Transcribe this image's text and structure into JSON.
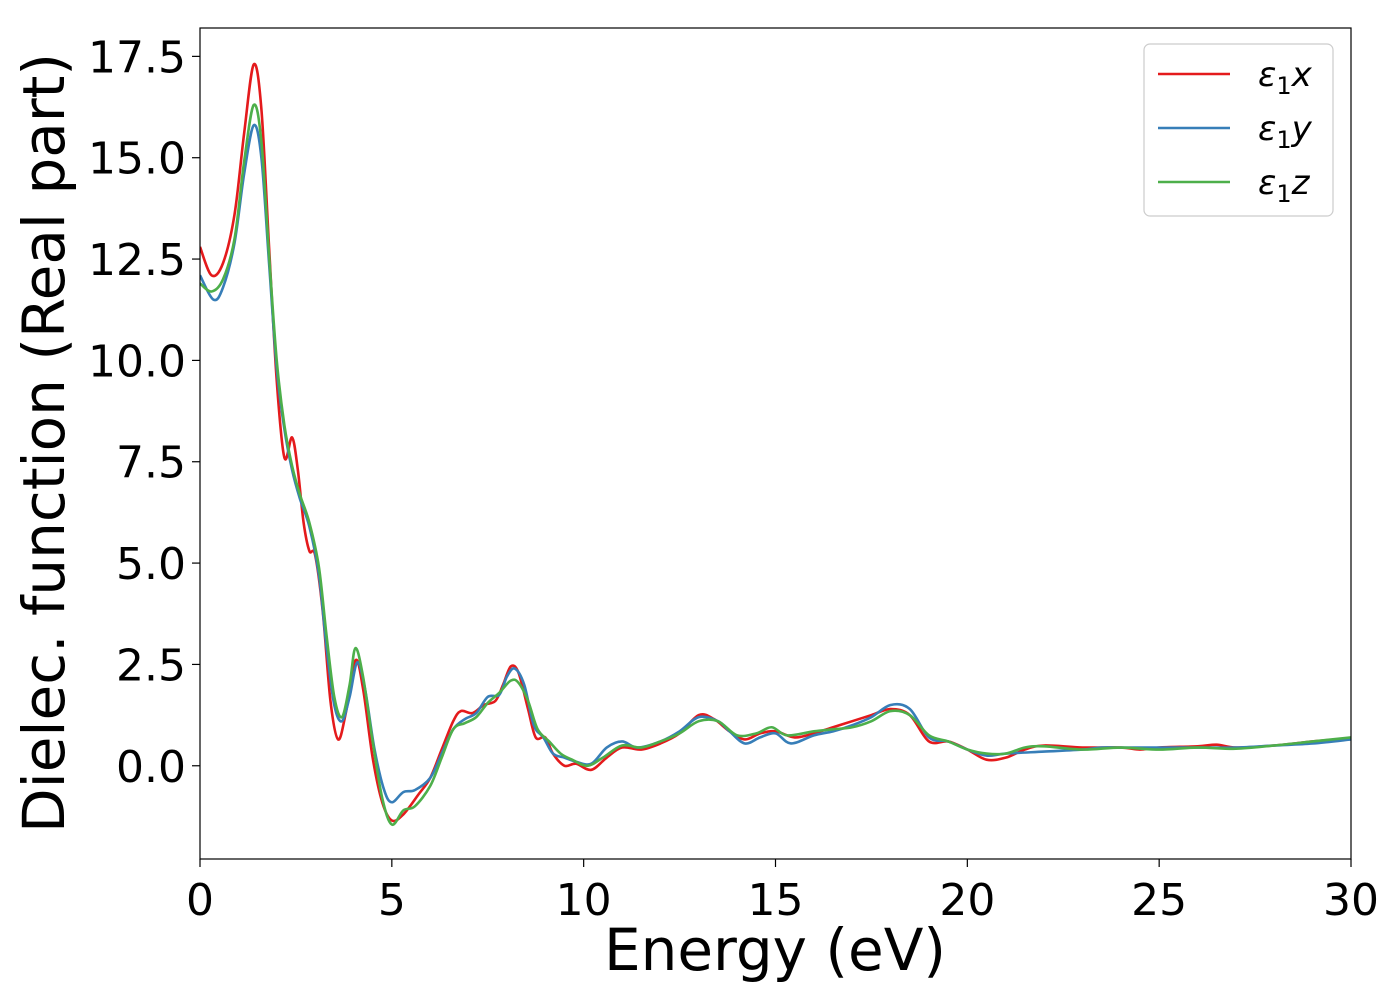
{
  "chart_data": {
    "type": "line",
    "title": "",
    "xlabel": "Energy (eV)",
    "ylabel": "Dielec. function (Real part)",
    "xlim": [
      0,
      30
    ],
    "ylim": [
      -2.3,
      18.2
    ],
    "xticks": [
      0,
      5,
      10,
      15,
      20,
      25,
      30
    ],
    "xtick_labels": [
      "0",
      "5",
      "10",
      "15",
      "20",
      "25",
      "30"
    ],
    "yticks": [
      0.0,
      2.5,
      5.0,
      7.5,
      10.0,
      12.5,
      15.0,
      17.5
    ],
    "ytick_labels": [
      "0.0",
      "2.5",
      "5.0",
      "7.5",
      "10.0",
      "12.5",
      "15.0",
      "17.5"
    ],
    "grid": false,
    "legend_position": "top-right",
    "series": [
      {
        "name": "ε1x",
        "legend_base": "ε",
        "legend_sub": "1",
        "legend_var": "x",
        "color": "#e41a1c",
        "points": [
          [
            0,
            12.8
          ],
          [
            0.3,
            12.1
          ],
          [
            0.6,
            12.4
          ],
          [
            0.9,
            13.6
          ],
          [
            1.15,
            15.6
          ],
          [
            1.4,
            17.3
          ],
          [
            1.6,
            16.2
          ],
          [
            1.8,
            12.8
          ],
          [
            2.0,
            9.5
          ],
          [
            2.2,
            7.6
          ],
          [
            2.4,
            8.1
          ],
          [
            2.55,
            7.3
          ],
          [
            2.7,
            6.0
          ],
          [
            2.85,
            5.3
          ],
          [
            3.0,
            5.2
          ],
          [
            3.2,
            3.8
          ],
          [
            3.4,
            1.6
          ],
          [
            3.6,
            0.65
          ],
          [
            3.8,
            1.3
          ],
          [
            4.05,
            2.6
          ],
          [
            4.25,
            1.9
          ],
          [
            4.5,
            0.2
          ],
          [
            4.75,
            -0.9
          ],
          [
            5.0,
            -1.35
          ],
          [
            5.3,
            -1.2
          ],
          [
            5.7,
            -0.7
          ],
          [
            6.0,
            -0.3
          ],
          [
            6.3,
            0.4
          ],
          [
            6.6,
            1.1
          ],
          [
            6.8,
            1.35
          ],
          [
            7.1,
            1.3
          ],
          [
            7.4,
            1.5
          ],
          [
            7.7,
            1.6
          ],
          [
            7.9,
            2.0
          ],
          [
            8.1,
            2.45
          ],
          [
            8.3,
            2.3
          ],
          [
            8.55,
            1.4
          ],
          [
            8.75,
            0.7
          ],
          [
            9.0,
            0.7
          ],
          [
            9.2,
            0.3
          ],
          [
            9.5,
            0.0
          ],
          [
            9.8,
            0.05
          ],
          [
            10.2,
            -0.1
          ],
          [
            10.6,
            0.2
          ],
          [
            11.0,
            0.45
          ],
          [
            11.5,
            0.4
          ],
          [
            12.0,
            0.55
          ],
          [
            12.5,
            0.8
          ],
          [
            13.0,
            1.25
          ],
          [
            13.4,
            1.15
          ],
          [
            13.8,
            0.85
          ],
          [
            14.2,
            0.65
          ],
          [
            14.6,
            0.8
          ],
          [
            15.0,
            0.85
          ],
          [
            15.5,
            0.7
          ],
          [
            16.0,
            0.8
          ],
          [
            16.5,
            0.95
          ],
          [
            17.0,
            1.1
          ],
          [
            17.5,
            1.25
          ],
          [
            18.0,
            1.4
          ],
          [
            18.5,
            1.25
          ],
          [
            19.0,
            0.6
          ],
          [
            19.5,
            0.6
          ],
          [
            20.0,
            0.4
          ],
          [
            20.5,
            0.15
          ],
          [
            21.0,
            0.2
          ],
          [
            21.5,
            0.4
          ],
          [
            22.0,
            0.5
          ],
          [
            23.0,
            0.45
          ],
          [
            24.0,
            0.45
          ],
          [
            24.5,
            0.4
          ],
          [
            25.0,
            0.45
          ],
          [
            26.0,
            0.48
          ],
          [
            26.5,
            0.52
          ],
          [
            27.0,
            0.45
          ],
          [
            28.0,
            0.5
          ],
          [
            29.0,
            0.6
          ],
          [
            30.0,
            0.68
          ]
        ]
      },
      {
        "name": "ε1y",
        "legend_base": "ε",
        "legend_sub": "1",
        "legend_var": "y",
        "color": "#377eb8",
        "points": [
          [
            0,
            12.1
          ],
          [
            0.35,
            11.5
          ],
          [
            0.6,
            11.8
          ],
          [
            0.9,
            12.9
          ],
          [
            1.15,
            14.6
          ],
          [
            1.4,
            15.8
          ],
          [
            1.6,
            15.0
          ],
          [
            1.8,
            12.4
          ],
          [
            2.0,
            9.8
          ],
          [
            2.2,
            8.3
          ],
          [
            2.4,
            7.3
          ],
          [
            2.6,
            6.6
          ],
          [
            2.85,
            5.9
          ],
          [
            3.1,
            4.7
          ],
          [
            3.3,
            2.9
          ],
          [
            3.5,
            1.5
          ],
          [
            3.7,
            1.1
          ],
          [
            3.9,
            1.7
          ],
          [
            4.1,
            2.55
          ],
          [
            4.3,
            1.9
          ],
          [
            4.55,
            0.4
          ],
          [
            4.8,
            -0.6
          ],
          [
            5.0,
            -0.9
          ],
          [
            5.3,
            -0.65
          ],
          [
            5.6,
            -0.6
          ],
          [
            6.0,
            -0.3
          ],
          [
            6.3,
            0.3
          ],
          [
            6.6,
            0.9
          ],
          [
            6.9,
            1.15
          ],
          [
            7.2,
            1.3
          ],
          [
            7.5,
            1.7
          ],
          [
            7.8,
            1.75
          ],
          [
            8.0,
            2.2
          ],
          [
            8.2,
            2.4
          ],
          [
            8.45,
            2.0
          ],
          [
            8.7,
            1.0
          ],
          [
            8.95,
            0.7
          ],
          [
            9.2,
            0.3
          ],
          [
            9.5,
            0.2
          ],
          [
            9.8,
            0.1
          ],
          [
            10.2,
            0.05
          ],
          [
            10.6,
            0.45
          ],
          [
            11.0,
            0.6
          ],
          [
            11.4,
            0.45
          ],
          [
            12.0,
            0.6
          ],
          [
            12.5,
            0.85
          ],
          [
            13.0,
            1.2
          ],
          [
            13.5,
            1.1
          ],
          [
            13.8,
            0.85
          ],
          [
            14.2,
            0.55
          ],
          [
            14.6,
            0.7
          ],
          [
            15.0,
            0.8
          ],
          [
            15.4,
            0.55
          ],
          [
            16.0,
            0.75
          ],
          [
            16.5,
            0.85
          ],
          [
            17.0,
            1.0
          ],
          [
            17.5,
            1.2
          ],
          [
            18.0,
            1.5
          ],
          [
            18.5,
            1.4
          ],
          [
            19.0,
            0.7
          ],
          [
            19.5,
            0.6
          ],
          [
            20.0,
            0.4
          ],
          [
            20.5,
            0.25
          ],
          [
            21.0,
            0.3
          ],
          [
            22.0,
            0.35
          ],
          [
            23.0,
            0.4
          ],
          [
            23.5,
            0.45
          ],
          [
            24.0,
            0.45
          ],
          [
            25.0,
            0.45
          ],
          [
            26.0,
            0.45
          ],
          [
            27.0,
            0.45
          ],
          [
            28.0,
            0.5
          ],
          [
            29.0,
            0.55
          ],
          [
            30.0,
            0.65
          ]
        ]
      },
      {
        "name": "ε1z",
        "legend_base": "ε",
        "legend_sub": "1",
        "legend_var": "z",
        "color": "#4daf4a",
        "points": [
          [
            0,
            11.9
          ],
          [
            0.3,
            11.7
          ],
          [
            0.6,
            12.0
          ],
          [
            0.9,
            13.0
          ],
          [
            1.15,
            14.9
          ],
          [
            1.4,
            16.3
          ],
          [
            1.6,
            15.4
          ],
          [
            1.8,
            12.6
          ],
          [
            2.0,
            10.0
          ],
          [
            2.2,
            8.4
          ],
          [
            2.4,
            7.4
          ],
          [
            2.6,
            6.7
          ],
          [
            2.85,
            6.0
          ],
          [
            3.1,
            4.9
          ],
          [
            3.3,
            3.2
          ],
          [
            3.5,
            1.7
          ],
          [
            3.7,
            1.2
          ],
          [
            3.9,
            2.0
          ],
          [
            4.05,
            2.9
          ],
          [
            4.25,
            2.2
          ],
          [
            4.5,
            0.6
          ],
          [
            4.75,
            -0.8
          ],
          [
            5.0,
            -1.45
          ],
          [
            5.3,
            -1.1
          ],
          [
            5.6,
            -1.0
          ],
          [
            6.0,
            -0.5
          ],
          [
            6.3,
            0.2
          ],
          [
            6.6,
            0.9
          ],
          [
            6.9,
            1.05
          ],
          [
            7.2,
            1.2
          ],
          [
            7.5,
            1.55
          ],
          [
            7.8,
            1.8
          ],
          [
            8.1,
            2.1
          ],
          [
            8.3,
            2.05
          ],
          [
            8.55,
            1.6
          ],
          [
            8.8,
            0.9
          ],
          [
            9.1,
            0.6
          ],
          [
            9.4,
            0.3
          ],
          [
            9.7,
            0.15
          ],
          [
            10.1,
            0.0
          ],
          [
            10.5,
            0.2
          ],
          [
            11.0,
            0.5
          ],
          [
            11.5,
            0.45
          ],
          [
            12.0,
            0.6
          ],
          [
            12.5,
            0.8
          ],
          [
            13.0,
            1.1
          ],
          [
            13.5,
            1.1
          ],
          [
            14.0,
            0.75
          ],
          [
            14.5,
            0.8
          ],
          [
            14.9,
            0.95
          ],
          [
            15.3,
            0.75
          ],
          [
            16.0,
            0.85
          ],
          [
            16.5,
            0.9
          ],
          [
            17.0,
            0.95
          ],
          [
            17.5,
            1.1
          ],
          [
            18.0,
            1.35
          ],
          [
            18.5,
            1.25
          ],
          [
            19.0,
            0.75
          ],
          [
            19.5,
            0.6
          ],
          [
            20.0,
            0.4
          ],
          [
            20.5,
            0.3
          ],
          [
            21.0,
            0.3
          ],
          [
            21.5,
            0.45
          ],
          [
            22.0,
            0.48
          ],
          [
            23.0,
            0.4
          ],
          [
            24.0,
            0.45
          ],
          [
            25.0,
            0.4
          ],
          [
            26.0,
            0.45
          ],
          [
            27.0,
            0.42
          ],
          [
            28.0,
            0.5
          ],
          [
            29.0,
            0.6
          ],
          [
            30.0,
            0.7
          ]
        ]
      }
    ]
  }
}
